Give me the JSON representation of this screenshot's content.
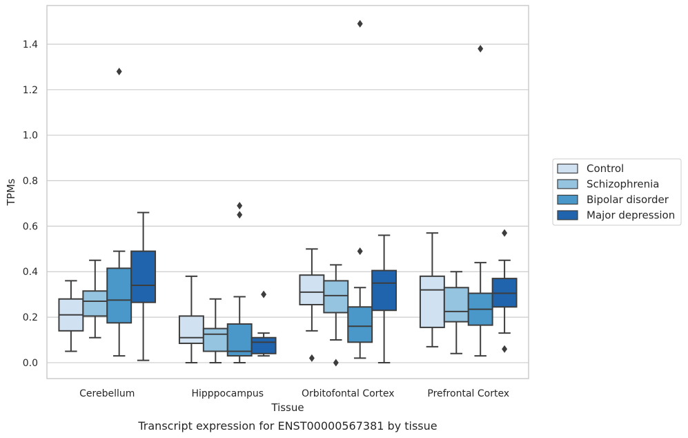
{
  "chart_data": {
    "type": "box",
    "xlabel": "Tissue",
    "ylabel": "TPMs",
    "caption": "Transcript expression for ENST00000567381 by tissue",
    "ylim": [
      -0.07,
      1.57
    ],
    "yticks": [
      "0.0",
      "0.2",
      "0.4",
      "0.6",
      "0.8",
      "1.0",
      "1.2",
      "1.4"
    ],
    "ytick_values": [
      0.0,
      0.2,
      0.4,
      0.6,
      0.8,
      1.0,
      1.2,
      1.4
    ],
    "grid": "horizontal",
    "legend_position": "right",
    "categories": [
      "Cerebellum",
      "Hipppocampus",
      "Orbitofontal Cortex",
      "Prefrontal Cortex"
    ],
    "series": [
      {
        "name": "Control",
        "color": "#d0e1f2",
        "boxes": [
          {
            "whislo": 0.05,
            "q1": 0.14,
            "med": 0.21,
            "q3": 0.28,
            "whishi": 0.36,
            "fliers": []
          },
          {
            "whislo": 0.0,
            "q1": 0.085,
            "med": 0.11,
            "q3": 0.205,
            "whishi": 0.38,
            "fliers": []
          },
          {
            "whislo": 0.14,
            "q1": 0.255,
            "med": 0.31,
            "q3": 0.385,
            "whishi": 0.5,
            "fliers": [
              0.02
            ]
          },
          {
            "whislo": 0.07,
            "q1": 0.155,
            "med": 0.32,
            "q3": 0.38,
            "whishi": 0.57,
            "fliers": []
          }
        ]
      },
      {
        "name": "Schizophrenia",
        "color": "#94c4df",
        "boxes": [
          {
            "whislo": 0.11,
            "q1": 0.205,
            "med": 0.27,
            "q3": 0.315,
            "whishi": 0.45,
            "fliers": []
          },
          {
            "whislo": 0.0,
            "q1": 0.05,
            "med": 0.125,
            "q3": 0.15,
            "whishi": 0.28,
            "fliers": []
          },
          {
            "whislo": 0.1,
            "q1": 0.22,
            "med": 0.295,
            "q3": 0.36,
            "whishi": 0.43,
            "fliers": [
              0.0
            ]
          },
          {
            "whislo": 0.04,
            "q1": 0.18,
            "med": 0.225,
            "q3": 0.33,
            "whishi": 0.4,
            "fliers": []
          }
        ]
      },
      {
        "name": "Bipolar disorder",
        "color": "#4a98c9",
        "boxes": [
          {
            "whislo": 0.03,
            "q1": 0.175,
            "med": 0.275,
            "q3": 0.415,
            "whishi": 0.49,
            "fliers": [
              1.28
            ]
          },
          {
            "whislo": 0.0,
            "q1": 0.03,
            "med": 0.05,
            "q3": 0.17,
            "whishi": 0.29,
            "fliers": [
              0.65,
              0.69
            ]
          },
          {
            "whislo": 0.02,
            "q1": 0.09,
            "med": 0.16,
            "q3": 0.245,
            "whishi": 0.33,
            "fliers": [
              0.49,
              1.49
            ]
          },
          {
            "whislo": 0.03,
            "q1": 0.165,
            "med": 0.235,
            "q3": 0.305,
            "whishi": 0.44,
            "fliers": [
              1.38
            ]
          }
        ]
      },
      {
        "name": "Major depression",
        "color": "#2064ae",
        "boxes": [
          {
            "whislo": 0.01,
            "q1": 0.265,
            "med": 0.34,
            "q3": 0.49,
            "whishi": 0.66,
            "fliers": []
          },
          {
            "whislo": 0.03,
            "q1": 0.04,
            "med": 0.09,
            "q3": 0.11,
            "whishi": 0.13,
            "fliers": [
              0.3
            ]
          },
          {
            "whislo": 0.0,
            "q1": 0.23,
            "med": 0.35,
            "q3": 0.405,
            "whishi": 0.56,
            "fliers": []
          },
          {
            "whislo": 0.13,
            "q1": 0.245,
            "med": 0.305,
            "q3": 0.37,
            "whishi": 0.45,
            "fliers": [
              0.06,
              0.57
            ]
          }
        ]
      }
    ]
  }
}
